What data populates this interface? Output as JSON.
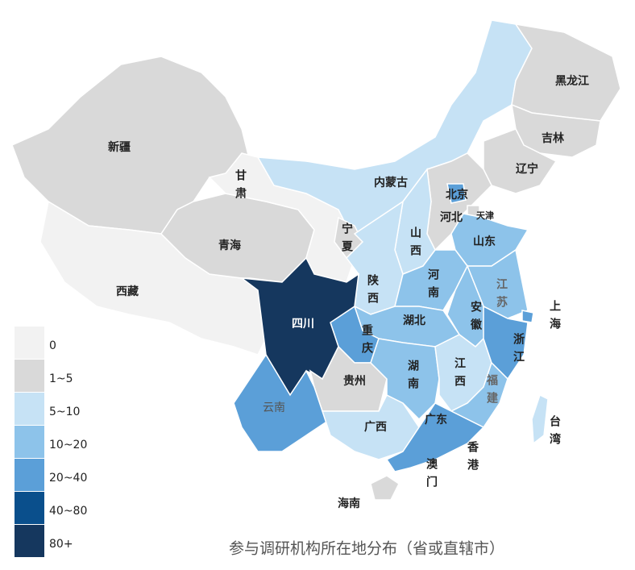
{
  "map": {
    "caption": "参与调研机构所在地分布（省或直辖市）",
    "legend": [
      {
        "label": "0",
        "color": "#f2f2f2"
      },
      {
        "label": "1~5",
        "color": "#d9d9d9"
      },
      {
        "label": "5~10",
        "color": "#c6e2f5"
      },
      {
        "label": "10~20",
        "color": "#8dc3ea"
      },
      {
        "label": "20~40",
        "color": "#5b9fd8"
      },
      {
        "label": "40~80",
        "color": "#0a4f8c"
      },
      {
        "label": "80+",
        "color": "#15375e"
      }
    ],
    "regions": [
      {
        "label": "新疆",
        "color": "#d9d9d9"
      },
      {
        "label": "西藏",
        "color": "#f2f2f2"
      },
      {
        "label": "青海",
        "color": "#d9d9d9"
      },
      {
        "label": "甘肃",
        "color": "#f2f2f2"
      },
      {
        "label": "内蒙古",
        "color": "#c6e2f5"
      },
      {
        "label": "宁夏",
        "color": "#d9d9d9"
      },
      {
        "label": "黑龙江",
        "color": "#d9d9d9"
      },
      {
        "label": "吉林",
        "color": "#d9d9d9"
      },
      {
        "label": "辽宁",
        "color": "#d9d9d9"
      },
      {
        "label": "河北",
        "color": "#d9d9d9"
      },
      {
        "label": "北京",
        "color": "#5b9fd8"
      },
      {
        "label": "天津",
        "color": "#d9d9d9"
      },
      {
        "label": "山西",
        "color": "#c6e2f5"
      },
      {
        "label": "山东",
        "color": "#8dc3ea"
      },
      {
        "label": "陕西",
        "color": "#c6e2f5"
      },
      {
        "label": "河南",
        "color": "#8dc3ea"
      },
      {
        "label": "江苏",
        "color": "#8dc3ea"
      },
      {
        "label": "安徽",
        "color": "#8dc3ea"
      },
      {
        "label": "上海",
        "color": "#5b9fd8"
      },
      {
        "label": "湖北",
        "color": "#8dc3ea"
      },
      {
        "label": "重庆",
        "color": "#5b9fd8"
      },
      {
        "label": "四川",
        "color": "#15375e"
      },
      {
        "label": "贵州",
        "color": "#d9d9d9"
      },
      {
        "label": "云南",
        "color": "#5b9fd8"
      },
      {
        "label": "广西",
        "color": "#c6e2f5"
      },
      {
        "label": "湖南",
        "color": "#8dc3ea"
      },
      {
        "label": "江西",
        "color": "#c6e2f5"
      },
      {
        "label": "浙江",
        "color": "#5b9fd8"
      },
      {
        "label": "福建",
        "color": "#8dc3ea"
      },
      {
        "label": "广东",
        "color": "#5b9fd8"
      },
      {
        "label": "海南",
        "color": "#d9d9d9"
      },
      {
        "label": "台湾",
        "color": "#c6e2f5"
      },
      {
        "label": "香港"
      },
      {
        "label": "澳门"
      }
    ]
  }
}
